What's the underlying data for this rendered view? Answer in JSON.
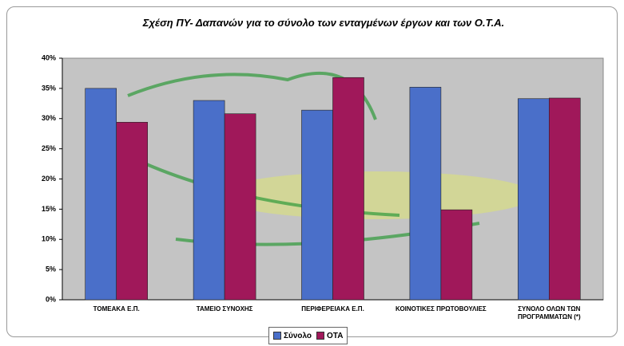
{
  "chart_data": {
    "type": "bar",
    "title": "Σχέση ΠΥ- Δαπανών για το σύνολο των ενταγμένων έργων και των Ο.Τ.Α.",
    "categories": [
      "ΤΟΜΕΑΚΑ Ε.Π.",
      "ΤΑΜΕΙΟ ΣΥΝΟΧΗΣ",
      "ΠΕΡΙΦΕΡΕΙΑΚΑ Ε.Π.",
      "ΚΟΙΝΟΤΙΚΕΣ ΠΡΩΤΟΒΟΥΛΙΕΣ",
      "ΣΥΝΟΛΟ ΟΛΩΝ ΤΩΝ ΠΡΟΓΡΑΜΜΑΤΩΝ (*)"
    ],
    "series": [
      {
        "name": "Σύνολο",
        "color": "#4a6fc9",
        "values": [
          35,
          33,
          31.4,
          35.2,
          33.3
        ]
      },
      {
        "name": "ΟΤΑ",
        "color": "#a0185a",
        "values": [
          29.4,
          30.8,
          36.8,
          14.9,
          33.4
        ]
      }
    ],
    "ylim": [
      0,
      40
    ],
    "yticks": [
      {
        "value": 0,
        "label": "0%"
      },
      {
        "value": 5,
        "label": "5%"
      },
      {
        "value": 10,
        "label": "10%"
      },
      {
        "value": 15,
        "label": "15%"
      },
      {
        "value": 20,
        "label": "20%"
      },
      {
        "value": 25,
        "label": "25%"
      },
      {
        "value": 30,
        "label": "30%"
      },
      {
        "value": 35,
        "label": "35%"
      },
      {
        "value": 40,
        "label": "40%"
      }
    ],
    "grid": false,
    "legend": "bottom"
  }
}
